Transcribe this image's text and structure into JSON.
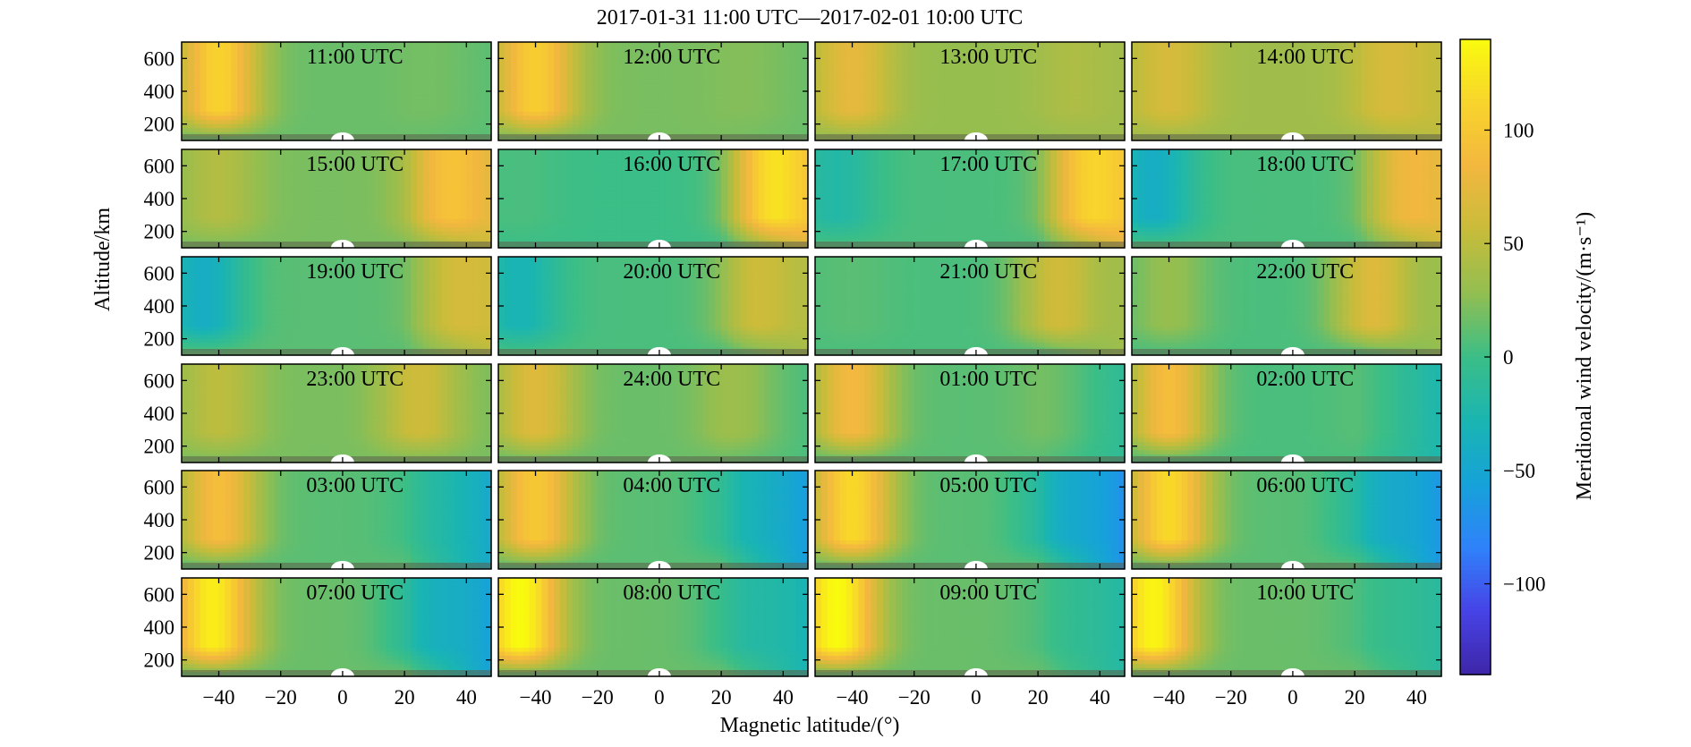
{
  "chart_data": {
    "type": "heatmap",
    "title": "2017-01-31 11:00 UTC—2017-02-01 10:00 UTC",
    "xlabel": "Magnetic latitude/(°)",
    "ylabel": "Altitude/km",
    "colorbar_label": "Meridional wind velocity/(m·s⁻¹)",
    "xlim": [
      -52,
      48
    ],
    "ylim": [
      100,
      700
    ],
    "clim": [
      -140,
      140
    ],
    "x_ticks": [
      -40,
      -20,
      0,
      20,
      40
    ],
    "x_tick_labels": [
      "−40",
      "−20",
      "0",
      "20",
      "40"
    ],
    "y_ticks": [
      200,
      400,
      600
    ],
    "y_tick_labels": [
      "200",
      "400",
      "600"
    ],
    "colorbar_ticks": [
      100,
      50,
      0,
      -50,
      -100
    ],
    "colorbar_tick_labels": [
      "100",
      "50",
      "0",
      "−50",
      "−100"
    ],
    "colormap": [
      "#3e26a8",
      "#4743e6",
      "#2f82fa",
      "#16a2d9",
      "#1ab5b2",
      "#3bbe87",
      "#92be51",
      "#c8bc3a",
      "#f3b73f",
      "#f8d42c",
      "#f9fb0e"
    ],
    "grid": false,
    "layout": {
      "rows": 6,
      "cols": 4
    },
    "panels": [
      {
        "label": "11:00 UTC",
        "south_peak": 110,
        "south_lat": -40,
        "north_peak": 20,
        "north_lat": 30,
        "background": 15,
        "east_edge": 10
      },
      {
        "label": "12:00 UTC",
        "south_peak": 105,
        "south_lat": -40,
        "north_peak": 25,
        "north_lat": 30,
        "background": 20,
        "east_edge": 15
      },
      {
        "label": "13:00 UTC",
        "south_peak": 75,
        "south_lat": -40,
        "north_peak": 40,
        "north_lat": 30,
        "background": 30,
        "east_edge": 35
      },
      {
        "label": "14:00 UTC",
        "south_peak": 65,
        "south_lat": -40,
        "north_peak": 60,
        "north_lat": 30,
        "background": 35,
        "east_edge": 50
      },
      {
        "label": "15:00 UTC",
        "south_peak": 45,
        "south_lat": -40,
        "north_peak": 75,
        "north_lat": 33,
        "background": 20,
        "east_edge": 60
      },
      {
        "label": "16:00 UTC",
        "south_peak": 5,
        "south_lat": -45,
        "north_peak": 80,
        "north_lat": 35,
        "background": 0,
        "east_edge": 70
      },
      {
        "label": "17:00 UTC",
        "south_peak": -20,
        "south_lat": -45,
        "north_peak": 70,
        "north_lat": 35,
        "background": 5,
        "east_edge": 75
      },
      {
        "label": "18:00 UTC",
        "south_peak": -40,
        "south_lat": -45,
        "north_peak": 50,
        "north_lat": 35,
        "background": 5,
        "east_edge": 60
      },
      {
        "label": "19:00 UTC",
        "south_peak": -40,
        "south_lat": -45,
        "north_peak": 40,
        "north_lat": 35,
        "background": 10,
        "east_edge": 50
      },
      {
        "label": "20:00 UTC",
        "south_peak": -30,
        "south_lat": -45,
        "north_peak": 45,
        "north_lat": 30,
        "background": 5,
        "east_edge": 40
      },
      {
        "label": "21:00 UTC",
        "south_peak": 10,
        "south_lat": -40,
        "north_peak": 55,
        "north_lat": 25,
        "background": 5,
        "east_edge": 35
      },
      {
        "label": "22:00 UTC",
        "south_peak": 30,
        "south_lat": -40,
        "north_peak": 65,
        "north_lat": 25,
        "background": 5,
        "east_edge": 30
      },
      {
        "label": "23:00 UTC",
        "south_peak": 50,
        "south_lat": -40,
        "north_peak": 60,
        "north_lat": 25,
        "background": 20,
        "east_edge": 20
      },
      {
        "label": "24:00 UTC",
        "south_peak": 70,
        "south_lat": -40,
        "north_peak": 35,
        "north_lat": 25,
        "background": 15,
        "east_edge": 5
      },
      {
        "label": "01:00 UTC",
        "south_peak": 85,
        "south_lat": -40,
        "north_peak": 20,
        "north_lat": 25,
        "background": 10,
        "east_edge": -10
      },
      {
        "label": "02:00 UTC",
        "south_peak": 90,
        "south_lat": -40,
        "north_peak": 10,
        "north_lat": 25,
        "background": 5,
        "east_edge": -25
      },
      {
        "label": "03:00 UTC",
        "south_peak": 90,
        "south_lat": -40,
        "north_peak": 0,
        "north_lat": 25,
        "background": 10,
        "east_edge": -45
      },
      {
        "label": "04:00 UTC",
        "south_peak": 100,
        "south_lat": -40,
        "north_peak": -10,
        "north_lat": 25,
        "background": 10,
        "east_edge": -60
      },
      {
        "label": "05:00 UTC",
        "south_peak": 115,
        "south_lat": -40,
        "north_peak": -20,
        "north_lat": 25,
        "background": 10,
        "east_edge": -70
      },
      {
        "label": "06:00 UTC",
        "south_peak": 115,
        "south_lat": -40,
        "north_peak": -20,
        "north_lat": 25,
        "background": 10,
        "east_edge": -65
      },
      {
        "label": "07:00 UTC",
        "south_peak": 130,
        "south_lat": -42,
        "north_peak": -15,
        "north_lat": 25,
        "background": 15,
        "east_edge": -55
      },
      {
        "label": "08:00 UTC",
        "south_peak": 140,
        "south_lat": -45,
        "north_peak": -5,
        "north_lat": 25,
        "background": 15,
        "east_edge": -30
      },
      {
        "label": "09:00 UTC",
        "south_peak": 140,
        "south_lat": -45,
        "north_peak": 5,
        "north_lat": 25,
        "background": 15,
        "east_edge": -20
      },
      {
        "label": "10:00 UTC",
        "south_peak": 135,
        "south_lat": -45,
        "north_peak": 5,
        "north_lat": 25,
        "background": 15,
        "east_edge": -15
      }
    ]
  }
}
